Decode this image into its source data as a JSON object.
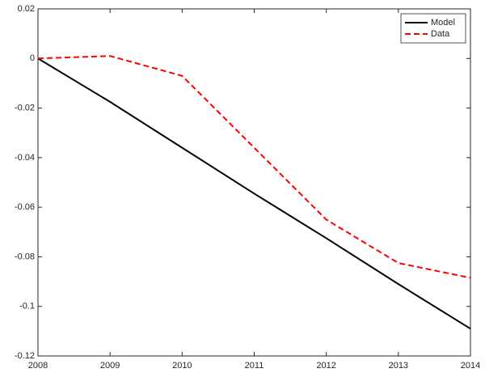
{
  "chart_data": {
    "type": "line",
    "x": [
      2008,
      2009,
      2010,
      2011,
      2012,
      2013,
      2014
    ],
    "series": [
      {
        "name": "Model",
        "color": "#000000",
        "linestyle": "solid",
        "values": [
          0,
          -0.0175,
          -0.036,
          -0.0545,
          -0.0725,
          -0.091,
          -0.109
        ]
      },
      {
        "name": "Data",
        "color": "#ff0000",
        "linestyle": "dashed",
        "values": [
          0,
          0.001,
          -0.007,
          -0.036,
          -0.065,
          -0.0825,
          -0.0885
        ]
      }
    ],
    "xlim": [
      2008,
      2014
    ],
    "xticks": [
      2008,
      2009,
      2010,
      2011,
      2012,
      2013,
      2014
    ],
    "ylim": [
      -0.12,
      0.02
    ],
    "yticks": [
      -0.12,
      -0.1,
      -0.08,
      -0.06,
      -0.04,
      -0.02,
      0,
      0.02
    ],
    "grid": false,
    "legend": "top-right"
  }
}
